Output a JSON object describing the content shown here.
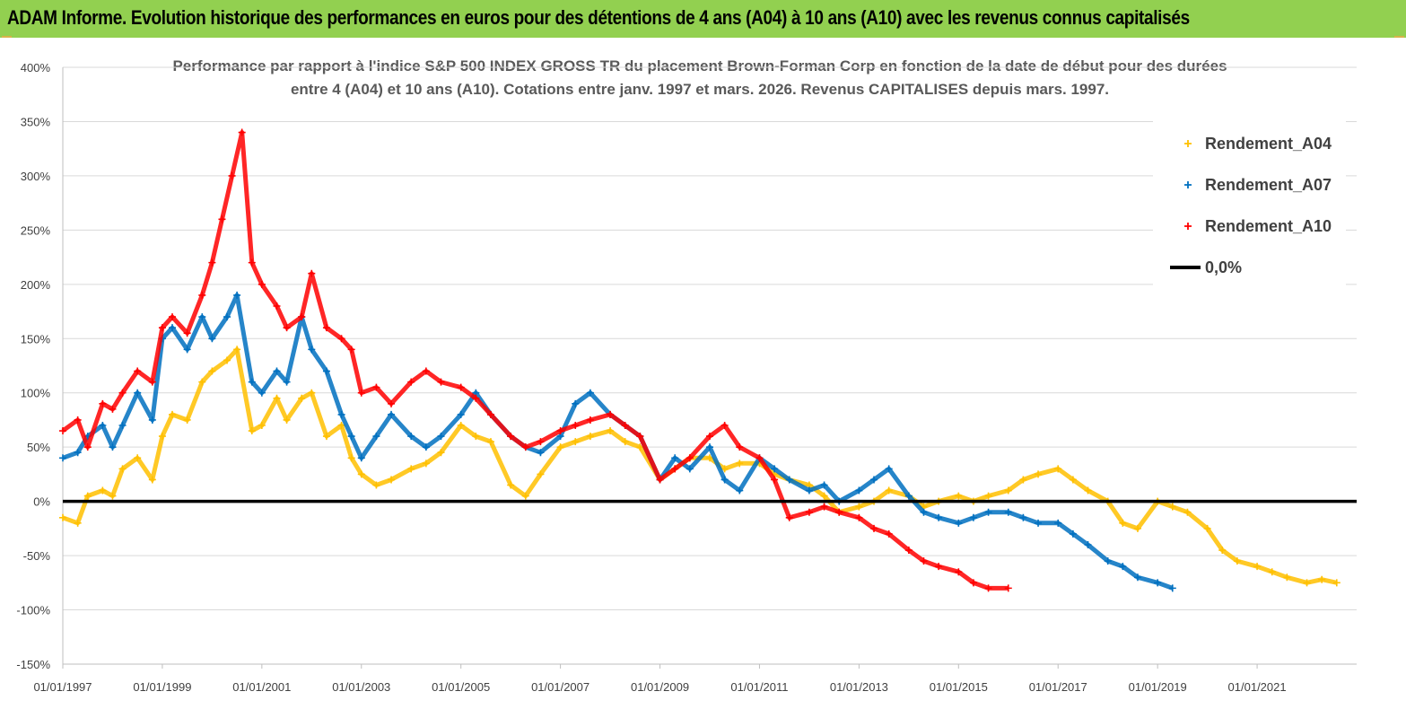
{
  "banner": {
    "title": "ADAM Informe. Evolution historique des performances en euros pour des détentions de 4 ans (A04) à 10 ans (A10) avec les revenus connus capitalisés"
  },
  "chart_data": {
    "type": "scatter",
    "title_line1": "Performance par rapport à l'indice S&P 500 INDEX GROSS TR  du placement Brown-Forman Corp en fonction de la date de début pour des durées",
    "title_line2": "entre 4 (A04) et 10 ans (A10). Cotations entre janv. 1997 et mars. 2026. Revenus CAPITALISES depuis mars. 1997.",
    "xlabel": "",
    "ylabel": "",
    "xlim": [
      1997.0,
      2023.0
    ],
    "ylim": [
      -150,
      400
    ],
    "y_ticks": [
      "400%",
      "350%",
      "300%",
      "250%",
      "200%",
      "150%",
      "100%",
      "50%",
      "0%",
      "-50%",
      "-100%",
      "-150%"
    ],
    "y_tick_values": [
      400,
      350,
      300,
      250,
      200,
      150,
      100,
      50,
      0,
      -50,
      -100,
      -150
    ],
    "x_ticks": [
      "01/01/1997",
      "01/01/1999",
      "01/01/2001",
      "01/01/2003",
      "01/01/2005",
      "01/01/2007",
      "01/01/2009",
      "01/01/2011",
      "01/01/2013",
      "01/01/2015",
      "01/01/2017",
      "01/01/2019",
      "01/01/2021"
    ],
    "x_tick_values": [
      1997,
      1999,
      2001,
      2003,
      2005,
      2007,
      2009,
      2011,
      2013,
      2015,
      2017,
      2019,
      2021
    ],
    "legend_position": "top-right",
    "series": [
      {
        "name": "Rendement_A04",
        "color": "#ffc000",
        "marker": "+",
        "x": [
          1997.0,
          1997.3,
          1997.5,
          1997.8,
          1998.0,
          1998.2,
          1998.5,
          1998.8,
          1999.0,
          1999.2,
          1999.5,
          1999.8,
          2000.0,
          2000.3,
          2000.5,
          2000.8,
          2001.0,
          2001.3,
          2001.5,
          2001.8,
          2002.0,
          2002.3,
          2002.6,
          2002.8,
          2003.0,
          2003.3,
          2003.6,
          2004.0,
          2004.3,
          2004.6,
          2005.0,
          2005.3,
          2005.6,
          2006.0,
          2006.3,
          2006.6,
          2007.0,
          2007.3,
          2007.6,
          2008.0,
          2008.3,
          2008.6,
          2009.0,
          2009.3,
          2009.6,
          2010.0,
          2010.3,
          2010.6,
          2011.0,
          2011.3,
          2011.6,
          2012.0,
          2012.3,
          2012.6,
          2013.0,
          2013.3,
          2013.6,
          2014.0,
          2014.3,
          2014.6,
          2015.0,
          2015.3,
          2015.6,
          2016.0,
          2016.3,
          2016.6,
          2017.0,
          2017.3,
          2017.6,
          2018.0,
          2018.3,
          2018.6,
          2019.0,
          2019.3,
          2019.6,
          2020.0,
          2020.3,
          2020.6,
          2021.0,
          2021.3,
          2021.6,
          2022.0,
          2022.3,
          2022.6
        ],
        "y": [
          -15,
          -20,
          5,
          10,
          5,
          30,
          40,
          20,
          60,
          80,
          75,
          110,
          120,
          130,
          140,
          65,
          70,
          95,
          75,
          95,
          100,
          60,
          70,
          40,
          25,
          15,
          20,
          30,
          35,
          45,
          70,
          60,
          55,
          15,
          5,
          25,
          50,
          55,
          60,
          65,
          55,
          50,
          20,
          30,
          40,
          40,
          30,
          35,
          35,
          25,
          20,
          15,
          5,
          -10,
          -5,
          0,
          10,
          5,
          -5,
          0,
          5,
          0,
          5,
          10,
          20,
          25,
          30,
          20,
          10,
          0,
          -20,
          -25,
          0,
          -5,
          -10,
          -25,
          -45,
          -55,
          -60,
          -65,
          -70,
          -75,
          -72,
          -75
        ]
      },
      {
        "name": "Rendement_A07",
        "color": "#0070c0",
        "marker": "+",
        "x": [
          1997.0,
          1997.3,
          1997.5,
          1997.8,
          1998.0,
          1998.2,
          1998.5,
          1998.8,
          1999.0,
          1999.2,
          1999.5,
          1999.8,
          2000.0,
          2000.3,
          2000.5,
          2000.8,
          2001.0,
          2001.3,
          2001.5,
          2001.8,
          2002.0,
          2002.3,
          2002.6,
          2002.8,
          2003.0,
          2003.3,
          2003.6,
          2004.0,
          2004.3,
          2004.6,
          2005.0,
          2005.3,
          2005.6,
          2006.0,
          2006.3,
          2006.6,
          2007.0,
          2007.3,
          2007.6,
          2008.0,
          2008.3,
          2008.6,
          2009.0,
          2009.3,
          2009.6,
          2010.0,
          2010.3,
          2010.6,
          2011.0,
          2011.3,
          2011.6,
          2012.0,
          2012.3,
          2012.6,
          2013.0,
          2013.3,
          2013.6,
          2014.0,
          2014.3,
          2014.6,
          2015.0,
          2015.3,
          2015.6,
          2016.0,
          2016.3,
          2016.6,
          2017.0,
          2017.3,
          2017.6,
          2018.0,
          2018.3,
          2018.6,
          2019.0,
          2019.3
        ],
        "y": [
          40,
          45,
          60,
          70,
          50,
          70,
          100,
          75,
          150,
          160,
          140,
          170,
          150,
          170,
          190,
          110,
          100,
          120,
          110,
          170,
          140,
          120,
          80,
          60,
          40,
          60,
          80,
          60,
          50,
          60,
          80,
          100,
          80,
          60,
          50,
          45,
          60,
          90,
          100,
          80,
          70,
          60,
          20,
          40,
          30,
          50,
          20,
          10,
          40,
          30,
          20,
          10,
          15,
          0,
          10,
          20,
          30,
          5,
          -10,
          -15,
          -20,
          -15,
          -10,
          -10,
          -15,
          -20,
          -20,
          -30,
          -40,
          -55,
          -60,
          -70,
          -75,
          -80
        ]
      },
      {
        "name": "Rendement_A10",
        "color": "#ff0000",
        "marker": "+",
        "x": [
          1997.0,
          1997.3,
          1997.5,
          1997.8,
          1998.0,
          1998.2,
          1998.5,
          1998.8,
          1999.0,
          1999.2,
          1999.5,
          1999.8,
          2000.0,
          2000.2,
          2000.4,
          2000.6,
          2000.8,
          2001.0,
          2001.3,
          2001.5,
          2001.8,
          2002.0,
          2002.3,
          2002.6,
          2002.8,
          2003.0,
          2003.3,
          2003.6,
          2004.0,
          2004.3,
          2004.6,
          2005.0,
          2005.3,
          2005.6,
          2006.0,
          2006.3,
          2006.6,
          2007.0,
          2007.3,
          2007.6,
          2008.0,
          2008.3,
          2008.6,
          2009.0,
          2009.3,
          2009.6,
          2010.0,
          2010.3,
          2010.6,
          2011.0,
          2011.3,
          2011.6,
          2012.0,
          2012.3,
          2012.6,
          2013.0,
          2013.3,
          2013.6,
          2014.0,
          2014.3,
          2014.6,
          2015.0,
          2015.3,
          2015.6,
          2016.0
        ],
        "y": [
          65,
          75,
          50,
          90,
          85,
          100,
          120,
          110,
          160,
          170,
          155,
          190,
          220,
          260,
          300,
          340,
          220,
          200,
          180,
          160,
          170,
          210,
          160,
          150,
          140,
          100,
          105,
          90,
          110,
          120,
          110,
          105,
          95,
          80,
          60,
          50,
          55,
          65,
          70,
          75,
          80,
          70,
          60,
          20,
          30,
          40,
          60,
          70,
          50,
          40,
          20,
          -15,
          -10,
          -5,
          -10,
          -15,
          -25,
          -30,
          -45,
          -55,
          -60,
          -65,
          -75,
          -80,
          -80
        ]
      },
      {
        "name": "0,0%",
        "color": "#000000",
        "marker": "line",
        "x": [
          1997.0,
          2023.0
        ],
        "y": [
          0,
          0
        ]
      }
    ]
  }
}
